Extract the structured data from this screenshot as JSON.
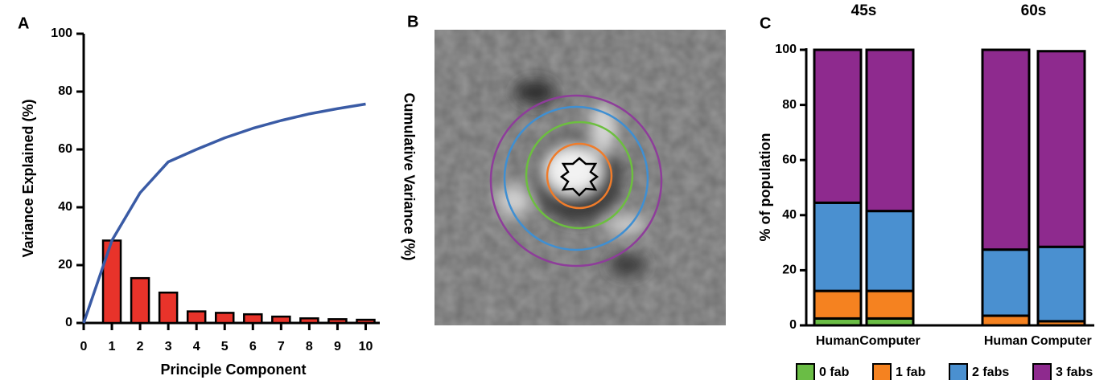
{
  "chart_data": [
    {
      "type": "bar_line",
      "label": "A",
      "xlabel": "Principle Component",
      "ylabel": "Variance Explained (%)",
      "y2label": "Cumulative Variance (%)",
      "bar_x": [
        1,
        2,
        3,
        4,
        5,
        6,
        7,
        8,
        9,
        10
      ],
      "bar_values": [
        28.5,
        15.5,
        10.5,
        4,
        3.5,
        3,
        2.2,
        1.6,
        1.3,
        1.1
      ],
      "bar_color": "#e8332a",
      "x": [
        0,
        1,
        2,
        3,
        4,
        5,
        6,
        7,
        8,
        9,
        10
      ],
      "line_values": [
        0,
        28.5,
        45,
        55.7,
        60,
        64,
        67.3,
        70,
        72.3,
        74.1,
        75.7
      ],
      "line_color": "#3a5ba5",
      "xlim": [
        0,
        10.5
      ],
      "xticks": [
        0,
        1,
        2,
        3,
        4,
        5,
        6,
        7,
        8,
        9,
        10
      ],
      "ylim": [
        0,
        100
      ],
      "yticks": [
        0,
        20,
        40,
        60,
        80,
        100
      ]
    },
    {
      "type": "image",
      "label": "B"
    },
    {
      "type": "stacked_bar",
      "label": "C",
      "ylabel": "% of population",
      "groups": [
        "45s",
        "60s"
      ],
      "categories": [
        "Human",
        "Computer",
        "Human",
        "Computer"
      ],
      "series": [
        {
          "name": "0 fab",
          "color": "#6abd45",
          "values": [
            2.5,
            2.5,
            0,
            0
          ]
        },
        {
          "name": "1 fab",
          "color": "#f58220",
          "values": [
            10,
            10,
            3.5,
            1.5
          ]
        },
        {
          "name": "2 fabs",
          "color": "#4a90d0",
          "values": [
            32,
            29,
            24,
            27
          ]
        },
        {
          "name": "3 fabs",
          "color": "#8e2a8e",
          "values": [
            55.5,
            58.5,
            72.5,
            71
          ]
        }
      ],
      "ylim": [
        0,
        100
      ],
      "yticks": [
        0,
        20,
        40,
        60,
        80,
        100
      ],
      "legend": "bottom"
    }
  ]
}
